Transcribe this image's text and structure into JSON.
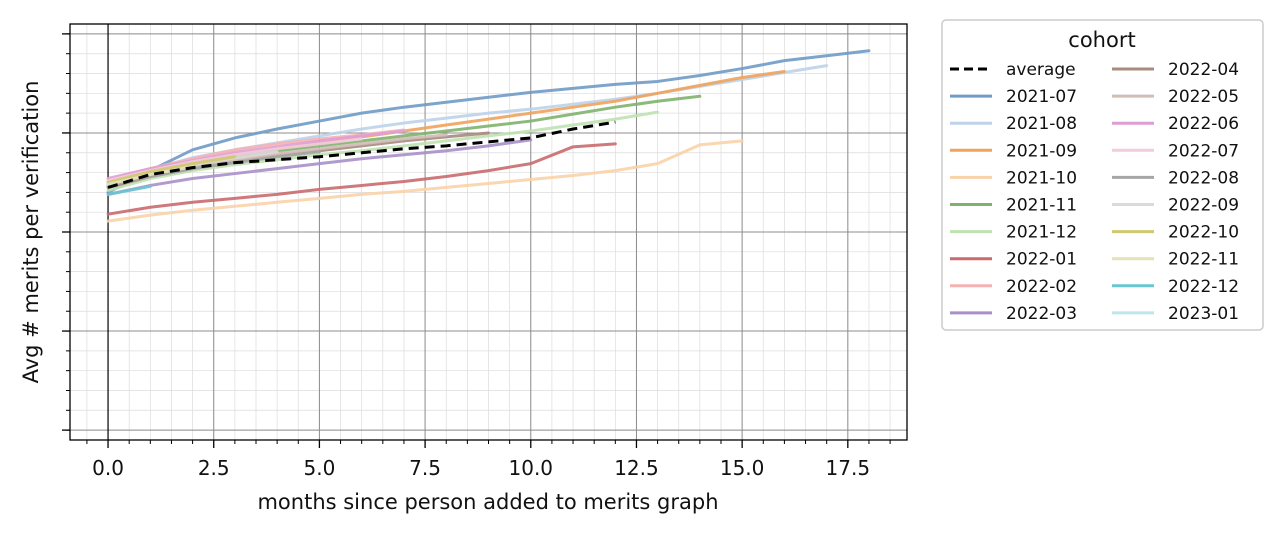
{
  "chart_data": {
    "type": "line",
    "title": "",
    "xlabel": "months since person added to merits graph",
    "ylabel": "Avg # merits per verification",
    "xlim": [
      -0.9,
      18.9
    ],
    "ylim": [
      0.0,
      4.2
    ],
    "x_ticks": [
      0.0,
      2.5,
      5.0,
      7.5,
      10.0,
      12.5,
      15.0,
      17.5
    ],
    "x_tick_labels": [
      "0.0",
      "2.5",
      "5.0",
      "7.5",
      "10.0",
      "12.5",
      "15.0",
      "17.5"
    ],
    "y_major_ticks": [
      0.1,
      1.1,
      2.1,
      3.1,
      4.1
    ],
    "y_tick_labels_visible": false,
    "grid": "major and minor",
    "legend": {
      "title": "cohort",
      "placement": "outside-right",
      "columns": 2
    },
    "series": [
      {
        "name": "average",
        "color": "#000000",
        "style": "dashed",
        "x": [
          0,
          1,
          2,
          3,
          4,
          5,
          6,
          7,
          8,
          9,
          10,
          11,
          12
        ],
        "y": [
          2.55,
          2.68,
          2.75,
          2.8,
          2.83,
          2.86,
          2.9,
          2.94,
          2.97,
          3.01,
          3.05,
          3.14,
          3.21
        ]
      },
      {
        "name": "2021-07",
        "color": "#6f9bc7",
        "style": "solid",
        "x": [
          0,
          1,
          2,
          3,
          4,
          5,
          6,
          7,
          8,
          9,
          10,
          11,
          12,
          13,
          14,
          15,
          16,
          17,
          18
        ],
        "y": [
          2.5,
          2.72,
          2.93,
          3.05,
          3.14,
          3.22,
          3.3,
          3.36,
          3.41,
          3.46,
          3.51,
          3.55,
          3.59,
          3.62,
          3.68,
          3.75,
          3.83,
          3.88,
          3.93
        ]
      },
      {
        "name": "2021-08",
        "color": "#bdd3ea",
        "style": "solid",
        "x": [
          0,
          1,
          2,
          3,
          4,
          5,
          6,
          7,
          8,
          9,
          10,
          11,
          12,
          13,
          14,
          15,
          16,
          17
        ],
        "y": [
          2.55,
          2.73,
          2.85,
          2.93,
          3.0,
          3.07,
          3.14,
          3.2,
          3.25,
          3.3,
          3.34,
          3.39,
          3.44,
          3.5,
          3.57,
          3.64,
          3.71,
          3.78
        ]
      },
      {
        "name": "2021-09",
        "color": "#f0a35c",
        "style": "solid",
        "x": [
          0,
          1,
          2,
          3,
          4,
          5,
          6,
          7,
          8,
          9,
          10,
          11,
          12,
          13,
          14,
          15,
          16
        ],
        "y": [
          2.56,
          2.7,
          2.8,
          2.88,
          2.94,
          3.0,
          3.06,
          3.12,
          3.18,
          3.24,
          3.3,
          3.36,
          3.42,
          3.5,
          3.58,
          3.66,
          3.72
        ]
      },
      {
        "name": "2021-10",
        "color": "#fad2a8",
        "style": "solid",
        "x": [
          0,
          1,
          2,
          3,
          4,
          5,
          6,
          7,
          8,
          9,
          10,
          11,
          12,
          13,
          14,
          15
        ],
        "y": [
          2.21,
          2.27,
          2.32,
          2.36,
          2.4,
          2.44,
          2.48,
          2.51,
          2.55,
          2.59,
          2.63,
          2.67,
          2.72,
          2.79,
          2.98,
          3.02
        ]
      },
      {
        "name": "2021-11",
        "color": "#7fb36b",
        "style": "solid",
        "x": [
          0,
          1,
          2,
          3,
          4,
          5,
          6,
          7,
          8,
          9,
          10,
          11,
          12,
          13,
          14
        ],
        "y": [
          2.58,
          2.71,
          2.8,
          2.86,
          2.92,
          2.97,
          3.02,
          3.07,
          3.12,
          3.17,
          3.22,
          3.29,
          3.36,
          3.42,
          3.47
        ]
      },
      {
        "name": "2021-12",
        "color": "#bfe2b1",
        "style": "solid",
        "x": [
          0,
          1,
          2,
          3,
          4,
          5,
          6,
          7,
          8,
          9,
          10,
          11,
          12,
          13
        ],
        "y": [
          2.52,
          2.64,
          2.72,
          2.78,
          2.83,
          2.88,
          2.92,
          2.97,
          3.02,
          3.07,
          3.12,
          3.18,
          3.24,
          3.31
        ]
      },
      {
        "name": "2022-01",
        "color": "#c96a6e",
        "style": "solid",
        "x": [
          0,
          1,
          2,
          3,
          4,
          5,
          6,
          7,
          8,
          9,
          10,
          11,
          12
        ],
        "y": [
          2.28,
          2.35,
          2.4,
          2.44,
          2.48,
          2.53,
          2.57,
          2.61,
          2.66,
          2.72,
          2.79,
          2.96,
          2.99
        ]
      },
      {
        "name": "2022-02",
        "color": "#f5b2b2",
        "style": "solid",
        "x": [
          0,
          1,
          2,
          3,
          4,
          5,
          6,
          7
        ],
        "y": [
          2.62,
          2.74,
          2.84,
          2.93,
          2.99,
          3.04,
          3.08,
          3.13
        ]
      },
      {
        "name": "2022-03",
        "color": "#a98fc8",
        "style": "solid",
        "x": [
          0,
          1,
          2,
          3,
          4,
          5,
          6,
          7,
          8,
          9,
          10
        ],
        "y": [
          2.48,
          2.57,
          2.64,
          2.69,
          2.74,
          2.79,
          2.84,
          2.88,
          2.92,
          2.97,
          3.03
        ]
      },
      {
        "name": "2022-04",
        "color": "#a88a80",
        "style": "solid",
        "x": [
          0,
          1,
          2,
          3,
          4,
          5,
          6,
          7,
          8,
          9
        ],
        "y": [
          2.55,
          2.66,
          2.74,
          2.81,
          2.87,
          2.92,
          2.97,
          3.02,
          3.06,
          3.1
        ]
      },
      {
        "name": "2022-05",
        "color": "#cfbdb6",
        "style": "solid",
        "x": [
          0,
          1,
          2,
          3,
          4,
          5,
          6,
          7,
          8
        ],
        "y": [
          2.58,
          2.68,
          2.76,
          2.83,
          2.89,
          2.94,
          2.99,
          3.04,
          3.08
        ]
      },
      {
        "name": "2022-06",
        "color": "#df9ed3",
        "style": "solid",
        "x": [
          0,
          1,
          2,
          3,
          4,
          5,
          6,
          7
        ],
        "y": [
          2.64,
          2.74,
          2.82,
          2.9,
          2.96,
          3.02,
          3.07,
          3.12
        ]
      },
      {
        "name": "2022-07",
        "color": "#f2cbde",
        "style": "solid",
        "x": [
          0,
          1,
          2,
          3,
          4,
          5,
          6
        ],
        "y": [
          2.62,
          2.72,
          2.81,
          2.88,
          2.94,
          2.99,
          3.04
        ]
      },
      {
        "name": "2022-08",
        "color": "#a6a6a6",
        "style": "solid",
        "x": [
          0,
          1,
          2,
          3,
          4,
          5
        ],
        "y": [
          2.57,
          2.66,
          2.74,
          2.8,
          2.86,
          2.91
        ]
      },
      {
        "name": "2022-09",
        "color": "#dadada",
        "style": "solid",
        "x": [
          0,
          1,
          2,
          3,
          4
        ],
        "y": [
          2.6,
          2.7,
          2.78,
          2.85,
          2.91
        ]
      },
      {
        "name": "2022-10",
        "color": "#cfc86e",
        "style": "solid",
        "x": [
          0,
          1,
          2,
          3
        ],
        "y": [
          2.6,
          2.71,
          2.79,
          2.86
        ]
      },
      {
        "name": "2022-11",
        "color": "#e5e2b8",
        "style": "solid",
        "x": [
          0,
          1,
          2
        ],
        "y": [
          2.58,
          2.68,
          2.76
        ]
      },
      {
        "name": "2022-12",
        "color": "#69c7d4",
        "style": "solid",
        "x": [
          0,
          1
        ],
        "y": [
          2.48,
          2.56
        ]
      },
      {
        "name": "2023-01",
        "color": "#bfe5ec",
        "style": "solid",
        "x": [
          0
        ],
        "y": [
          2.58
        ]
      }
    ]
  }
}
